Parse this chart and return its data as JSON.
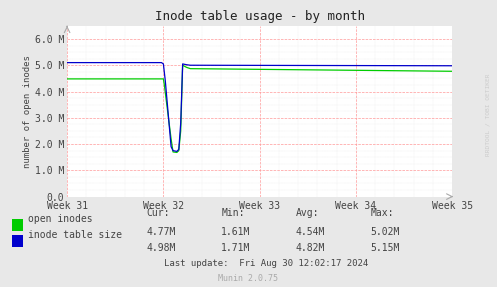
{
  "title": "Inode table usage - by month",
  "ylabel": "number of open inodes",
  "background_color": "#e8e8e8",
  "plot_bg_color": "#ffffff",
  "grid_color_major": "#ff9999",
  "grid_color_minor": "#dddddd",
  "ylim": [
    0,
    6500000
  ],
  "yticks": [
    0,
    1000000,
    2000000,
    3000000,
    4000000,
    5000000,
    6000000
  ],
  "ytick_labels": [
    "0.0",
    "1.0 M",
    "2.0 M",
    "3.0 M",
    "4.0 M",
    "5.0 M",
    "6.0 M"
  ],
  "xtick_labels": [
    "Week 31",
    "Week 32",
    "Week 33",
    "Week 34",
    "Week 35"
  ],
  "watermark": "RRDTOOL / TOBI OETIKER",
  "footer": "Munin 2.0.75",
  "legend_items": [
    "open inodes",
    "inode table size"
  ],
  "legend_colors": [
    "#00cc00",
    "#0000cc"
  ],
  "stats_header": [
    "Cur:",
    "Min:",
    "Avg:",
    "Max:"
  ],
  "stats_row1": [
    "4.77M",
    "1.61M",
    "4.54M",
    "5.02M"
  ],
  "stats_row2": [
    "4.98M",
    "1.71M",
    "4.82M",
    "5.15M"
  ],
  "last_update": "Last update:  Fri Aug 30 12:02:17 2024",
  "green_x": [
    0.0,
    0.245,
    0.25,
    0.252,
    0.27,
    0.275,
    0.285,
    0.29,
    0.295,
    0.3,
    0.31,
    0.32,
    1.0
  ],
  "green_y": [
    4480000,
    4480000,
    4480000,
    4300000,
    2200000,
    1700000,
    1680000,
    1750000,
    2500000,
    5000000,
    4920000,
    4870000,
    4770000
  ],
  "blue_x": [
    0.0,
    0.245,
    0.25,
    0.255,
    0.27,
    0.275,
    0.285,
    0.29,
    0.295,
    0.3,
    0.31,
    0.32,
    1.0
  ],
  "blue_y": [
    5100000,
    5100000,
    5050000,
    4400000,
    1900000,
    1750000,
    1720000,
    1800000,
    2800000,
    5050000,
    5020000,
    5000000,
    4980000
  ]
}
